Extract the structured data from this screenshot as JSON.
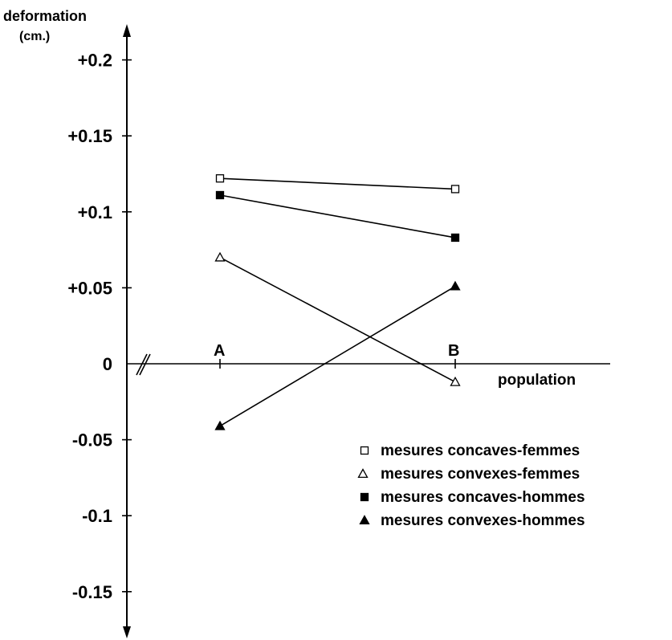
{
  "chart_data": {
    "type": "line",
    "ylabel_line1": "deformation",
    "ylabel_line2": "(cm.)",
    "xlabel": "population",
    "categories": [
      "A",
      "B"
    ],
    "y_ticks": [
      {
        "value": 0.2,
        "label": "+0.2"
      },
      {
        "value": 0.15,
        "label": "+0.15"
      },
      {
        "value": 0.1,
        "label": "+0.1"
      },
      {
        "value": 0.05,
        "label": "+0.05"
      },
      {
        "value": 0,
        "label": "0"
      },
      {
        "value": -0.05,
        "label": "-0.05"
      },
      {
        "value": -0.1,
        "label": "-0.1"
      },
      {
        "value": -0.15,
        "label": "-0.15"
      }
    ],
    "ylim": [
      -0.17,
      0.23
    ],
    "series": [
      {
        "name": "mesures concaves-femmes",
        "marker": "square-open",
        "values": [
          0.122,
          0.115
        ]
      },
      {
        "name": "mesures convexes-femmes",
        "marker": "triangle-open",
        "values": [
          0.07,
          -0.012
        ]
      },
      {
        "name": "mesures concaves-hommes",
        "marker": "square-filled",
        "values": [
          0.111,
          0.083
        ]
      },
      {
        "name": "mesures convexes-hommes",
        "marker": "triangle-filled",
        "values": [
          -0.041,
          0.051
        ]
      }
    ],
    "legend_position": "bottom-right",
    "grid": false
  }
}
